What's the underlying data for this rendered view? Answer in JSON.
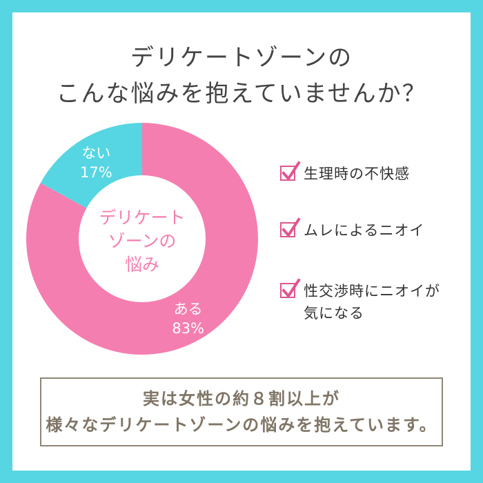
{
  "headline": {
    "line1": "デリケートゾーンの",
    "line2": "こんな悩みを抱えていませんか？"
  },
  "chart_data": {
    "type": "pie",
    "center_label": [
      "デリケート",
      "ゾーンの",
      "悩み"
    ],
    "slices": [
      {
        "label": "ある",
        "value": 83,
        "value_label": "83%",
        "color": "#f57eb0"
      },
      {
        "label": "ない",
        "value": 17,
        "value_label": "17%",
        "color": "#56d6e2"
      }
    ]
  },
  "checklist": {
    "items": [
      {
        "label": "生理時の不快感"
      },
      {
        "label": "ムレによるニオイ"
      },
      {
        "label": "性交渉時にニオイが\n気になる"
      }
    ]
  },
  "summary": {
    "line1": "実は女性の約８割以上が",
    "line2": "様々なデリケートゾーンの悩みを抱えています。"
  },
  "colors": {
    "frame": "#56d6e2",
    "accent_pink": "#f57eb0",
    "check_border": "#e0558f",
    "summary_border": "#8f8577"
  }
}
